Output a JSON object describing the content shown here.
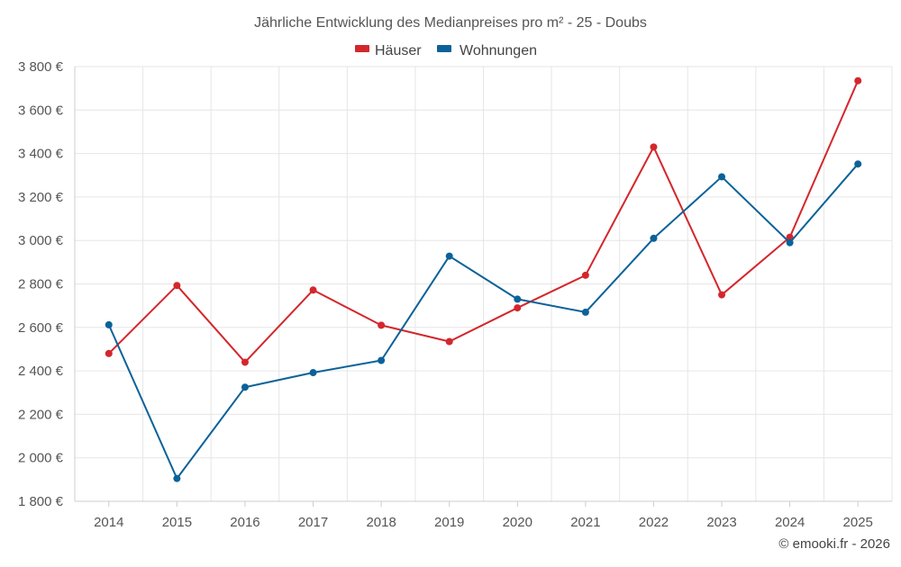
{
  "chart_data": {
    "type": "line",
    "title": "Jährliche Entwicklung des Medianpreises pro m² - 25 - Doubs",
    "categories": [
      "2014",
      "2015",
      "2016",
      "2017",
      "2018",
      "2019",
      "2020",
      "2021",
      "2022",
      "2023",
      "2024",
      "2025"
    ],
    "series": [
      {
        "name": "Häuser",
        "color": "#d3272c",
        "values": [
          2480,
          2793,
          2440,
          2772,
          2610,
          2535,
          2690,
          2840,
          3430,
          2750,
          3015,
          3735
        ]
      },
      {
        "name": "Wohnungen",
        "color": "#0b6298",
        "values": [
          2612,
          1905,
          2325,
          2392,
          2448,
          2928,
          2730,
          2670,
          3010,
          3293,
          2990,
          3352
        ]
      }
    ],
    "ylim": [
      1800,
      3800
    ],
    "yticks": [
      1800,
      2000,
      2200,
      2400,
      2600,
      2800,
      3000,
      3200,
      3400,
      3600,
      3800
    ],
    "ytick_labels": [
      "1 800 €",
      "2 000 €",
      "2 200 €",
      "2 400 €",
      "2 600 €",
      "2 800 €",
      "3 000 €",
      "3 200 €",
      "3 400 €",
      "3 600 €",
      "3 800 €"
    ],
    "xlabel": "",
    "ylabel": "",
    "grid": true,
    "legend_position": "top-center"
  },
  "credit": "© emooki.fr - 2026"
}
